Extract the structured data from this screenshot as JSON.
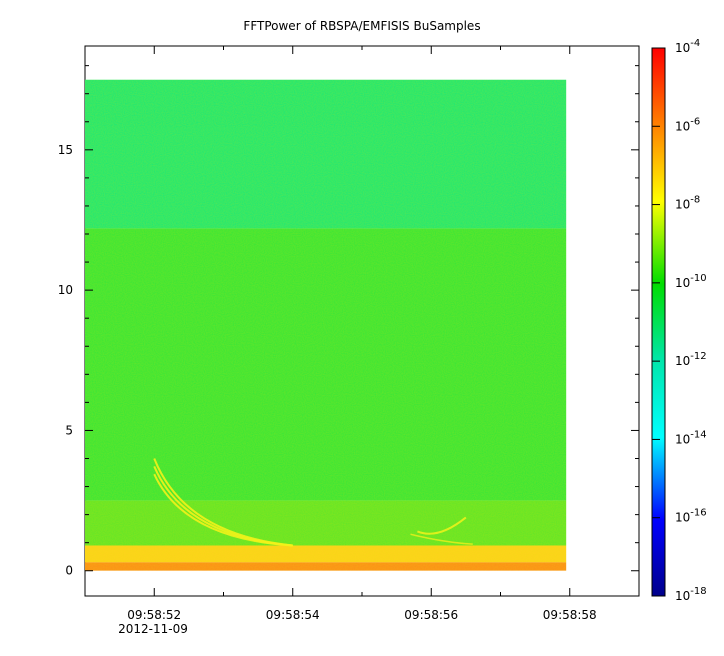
{
  "chart_data": {
    "type": "heatmap",
    "title": "FFTPower of RBSPA/EMFISIS  BuSamples",
    "xlabel": "",
    "ylabel": "",
    "x_tick_labels": [
      "09:58:52",
      "09:58:54",
      "09:58:56",
      "09:58:58"
    ],
    "x_tick_seconds": [
      52,
      54,
      56,
      58
    ],
    "x_date_label": "2012-11-09",
    "xlim_seconds": [
      51.0,
      59.0
    ],
    "ylim": [
      -0.9,
      18.7
    ],
    "y_ticks": [
      0,
      5,
      10,
      15
    ],
    "data_extent": {
      "x_seconds": [
        51.0,
        57.95
      ],
      "y": [
        0.0,
        17.5
      ]
    },
    "colorbar": {
      "scale": "log",
      "range": [
        1e-18,
        0.0001
      ],
      "tick_exponents": [
        -4,
        -6,
        -8,
        -10,
        -12,
        -14,
        -16,
        -18
      ],
      "tick_base": "10",
      "colors_top_to_bottom": [
        "#ff0000",
        "#ff8000",
        "#ffff00",
        "#00dd00",
        "#00e6aa",
        "#00ffff",
        "#0000ff",
        "#00008b"
      ]
    },
    "bands": [
      {
        "y_range": [
          12.2,
          17.5
        ],
        "log10_power": -12.0,
        "color": "#18e878"
      },
      {
        "y_range": [
          2.5,
          12.2
        ],
        "log10_power": -10.5,
        "color": "#33e63a"
      },
      {
        "y_range": [
          0.9,
          2.5
        ],
        "log10_power": -10.0,
        "color": "#5ee62a"
      },
      {
        "y_range": [
          0.3,
          0.9
        ],
        "log10_power": -7.5,
        "color": "#ffd21e"
      },
      {
        "y_range": [
          0.0,
          0.3
        ],
        "log10_power": -6.0,
        "color": "#ff8c1a"
      }
    ],
    "features": [
      {
        "name": "dispersive whistler traces",
        "x_seconds": [
          52.0,
          54.0
        ],
        "y": [
          4.0,
          0.9
        ]
      },
      {
        "name": "short whistler feature",
        "x_seconds": [
          55.8,
          56.5
        ],
        "y": [
          1.4,
          1.9
        ]
      }
    ],
    "grid": false
  }
}
